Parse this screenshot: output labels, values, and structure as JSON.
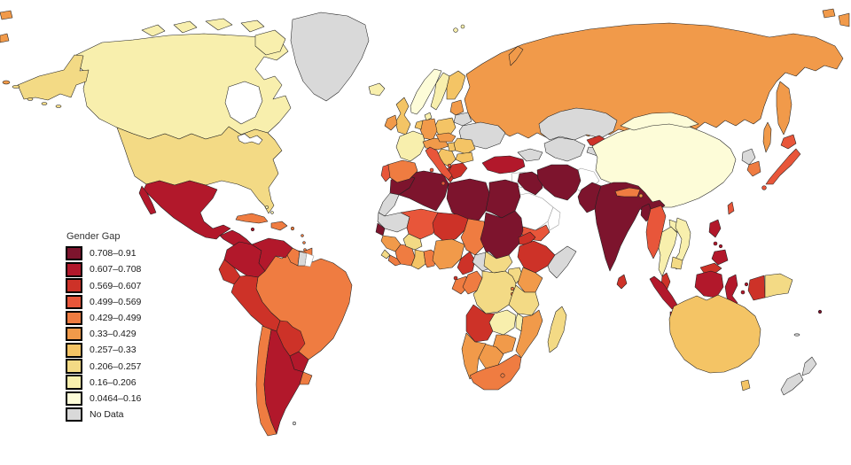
{
  "figure": {
    "type": "choropleth-world-map",
    "background": "#ffffff"
  },
  "legend": {
    "title": "Gender Gap",
    "items": [
      {
        "label": "0.708–0.91",
        "color": "#7d142d"
      },
      {
        "label": "0.607–0.708",
        "color": "#b2182b"
      },
      {
        "label": "0.569–0.607",
        "color": "#cd3228"
      },
      {
        "label": "0.499–0.569",
        "color": "#e8563a"
      },
      {
        "label": "0.429–0.499",
        "color": "#ef7c41"
      },
      {
        "label": "0.33–0.429",
        "color": "#f19a4a"
      },
      {
        "label": "0.257–0.33",
        "color": "#f4c465"
      },
      {
        "label": "0.206–0.257",
        "color": "#f3da85"
      },
      {
        "label": "0.16–0.206",
        "color": "#f8efad"
      },
      {
        "label": "0.0464–0.16",
        "color": "#fdfcd8"
      },
      {
        "label": "No Data",
        "color": "#d9d9d9"
      }
    ]
  },
  "map": {
    "ocean_color": "#ffffff",
    "border_color": "#1f1f1f",
    "no_value_color": "#ffffff",
    "countries": {
      "greenland": "No Data",
      "canada": "0.16–0.206",
      "arctic-island-1": "0.16–0.206",
      "arctic-island-2": "0.16–0.206",
      "arctic-island-3": "0.16–0.206",
      "arctic-island-4": "0.16–0.206",
      "baffin-island": "0.16–0.206",
      "alaska": "0.206–0.257",
      "aleutian-1": "0.206–0.257",
      "aleutian-2": "0.33–0.429",
      "usa": "0.206–0.257",
      "mexico": "0.607–0.708",
      "baja": "0.607–0.708",
      "central-america": "0.607–0.708",
      "cuba": "0.429–0.499",
      "jamaica": "0.607–0.708",
      "hispaniola": "0.429–0.499",
      "puerto-rico": "0.429–0.499",
      "bahamas": "0.16–0.206",
      "lesser-antilles": "0.429–0.499",
      "colombia": "0.607–0.708",
      "venezuela": "0.607–0.708",
      "guyana": "0.429–0.499",
      "suriname": "No Data",
      "french-guiana": null,
      "ecuador": "0.569–0.607",
      "peru": "0.569–0.607",
      "brazil": "0.429–0.499",
      "bolivia": "0.569–0.607",
      "paraguay": "0.607–0.708",
      "chile": "0.429–0.499",
      "argentina": "0.607–0.708",
      "uruguay": "0.429–0.499",
      "falklands": "No Data",
      "iceland": "0.16–0.206",
      "norway": "0.0464–0.16",
      "sweden": "0.16–0.206",
      "finland": "0.257–0.33",
      "denmark": "0.16–0.206",
      "uk": "0.257–0.33",
      "ireland": "0.33–0.429",
      "france": "0.16–0.206",
      "spain": "0.429–0.499",
      "portugal": "0.499–0.569",
      "germany": "0.33–0.429",
      "benelux": "0.257–0.33",
      "poland": "0.257–0.33",
      "czech-slovakia": "0.33–0.429",
      "austria-switzerland": "0.33–0.429",
      "hungary": "0.257–0.33",
      "balkans": "0.257–0.33",
      "albania": "0.499–0.569",
      "greece": "0.569–0.607",
      "romania": "0.257–0.33",
      "bulgaria": "0.257–0.33",
      "italy": "0.499–0.569",
      "sardinia": "0.499–0.569",
      "sicily": "0.499–0.569",
      "baltics": "0.33–0.429",
      "belarus": "No Data",
      "ukraine": "No Data",
      "russia": "0.33–0.429",
      "novaya-zemlya": "0.33–0.429",
      "svalbard": "0.16–0.206",
      "wrap-left-1": "0.33–0.429",
      "wrap-left-2": "0.33–0.429",
      "wrap-right-1": "0.33–0.429",
      "wrap-right-2": "0.33–0.429",
      "turkey": "0.607–0.708",
      "caucasus": "No Data",
      "cyprus": null,
      "syria": null,
      "levant": null,
      "iraq": "0.708–0.91",
      "iran": "0.708–0.91",
      "saudi-arabia": null,
      "yemen": "0.499–0.569",
      "oman": null,
      "kazakhstan": "No Data",
      "uzbek-turkmen": "No Data",
      "kyrgyzstan": "0.569–0.607",
      "tajikistan": "No Data",
      "afghanistan": null,
      "pakistan": "0.708–0.91",
      "india": "0.708–0.91",
      "nepal": "0.429–0.499",
      "bhutan": "0.33–0.429",
      "bangladesh": "0.708–0.91",
      "sri-lanka": "0.569–0.607",
      "myanmar": "0.499–0.569",
      "thailand": "0.16–0.206",
      "laos": "0.16–0.206",
      "vietnam": "0.16–0.206",
      "cambodia": "0.206–0.257",
      "malaysia": "0.569–0.607",
      "malaysia-borneo": "0.569–0.607",
      "sumatra": "0.607–0.708",
      "java": "0.607–0.708",
      "kalimantan": "0.607–0.708",
      "sulawesi": "0.607–0.708",
      "lesser-sunda": "0.607–0.708",
      "moluccas": "0.607–0.708",
      "west-papua": "0.569–0.607",
      "papua-new-guinea": "0.206–0.257",
      "philippines-luzon": "0.607–0.708",
      "philippines-visayas": "0.607–0.708",
      "philippines-mindanao": "0.607–0.708",
      "taiwan": "0.499–0.569",
      "china": "0.0464–0.16",
      "mongolia": "0.0464–0.16",
      "north-korea": "No Data",
      "south-korea": "0.429–0.499",
      "japan-hokkaido": "0.499–0.569",
      "japan-honshu": "0.499–0.569",
      "japan-kyushu": "0.499–0.569",
      "morocco": "0.708–0.91",
      "western-sahara": "No Data",
      "algeria": "0.708–0.91",
      "tunisia": "0.569–0.607",
      "libya": "0.708–0.91",
      "egypt": "0.708–0.91",
      "mauritania": "No Data",
      "mali": "0.499–0.569",
      "niger": "0.569–0.607",
      "chad": "0.429–0.499",
      "sudan": "0.708–0.91",
      "eritrea": "0.569–0.607",
      "ethiopia": "0.569–0.607",
      "somalia": "No Data",
      "senegal": "0.708–0.91",
      "guinea": "0.33–0.429",
      "sierra-leone": "0.206–0.257",
      "liberia": "0.429–0.499",
      "ivory-coast": "0.429–0.499",
      "burkina-faso": "0.206–0.257",
      "ghana": "0.257–0.33",
      "togo-benin": "0.429–0.499",
      "nigeria": "0.33–0.429",
      "cameroon": "0.569–0.607",
      "central-african-republic": "No Data",
      "south-sudan": "0.206–0.257",
      "uganda": "0.206–0.257",
      "kenya": "0.33–0.429",
      "equatorial-guinea": "0.569–0.607",
      "gabon": "0.429–0.499",
      "congo": "0.429–0.499",
      "drc": "0.206–0.257",
      "rwanda-burundi": "0.429–0.499",
      "tanzania": "0.206–0.257",
      "angola": "0.569–0.607",
      "zambia": "0.16–0.206",
      "malawi": "0.16–0.206",
      "mozambique": "0.33–0.429",
      "zimbabwe": "0.33–0.429",
      "botswana": "0.33–0.429",
      "namibia": "0.33–0.429",
      "south-africa": "0.429–0.499",
      "lesotho": "0.429–0.499",
      "madagascar": "0.206–0.257",
      "australia": "0.257–0.33",
      "tasmania": "0.257–0.33",
      "new-zealand-north": "No Data",
      "new-zealand-south": "No Data",
      "fiji": "0.708–0.91",
      "new-caledonia": "No Data"
    }
  }
}
